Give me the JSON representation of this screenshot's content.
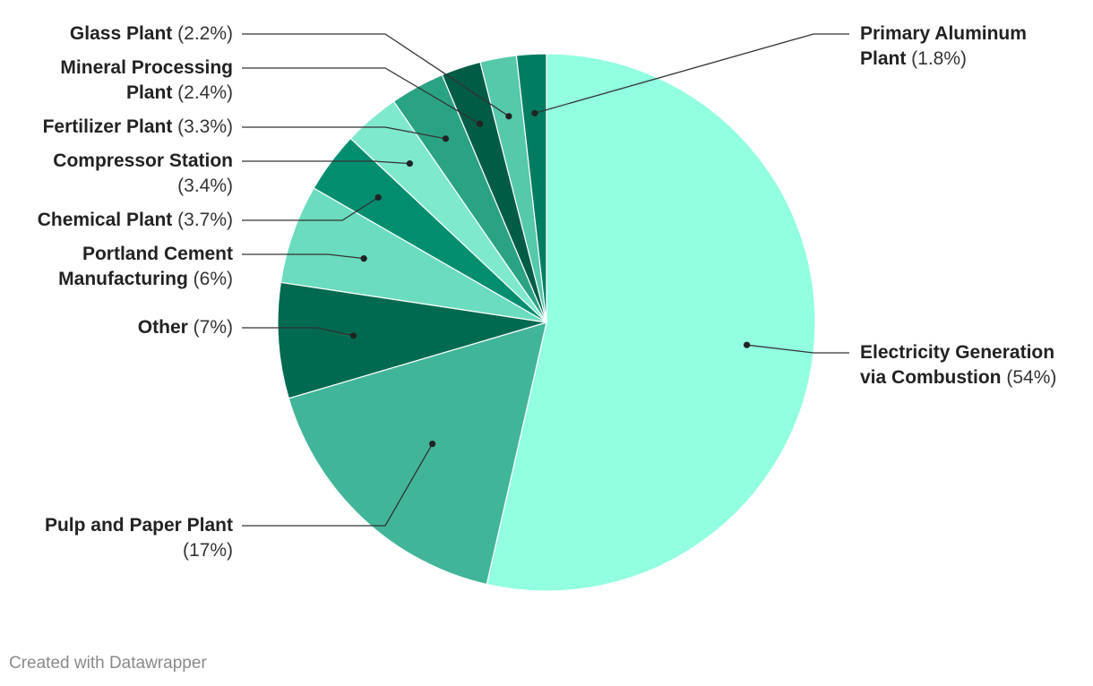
{
  "chart_data": {
    "type": "pie",
    "start_angle_deg": 0,
    "direction": "clockwise",
    "slices": [
      {
        "label_lines": [
          [
            "Electricity Generation",
            ""
          ],
          [
            "via Combustion",
            " (54%)"
          ]
        ],
        "name": "Electricity Generation via Combustion",
        "value": 54,
        "color": "#91ffe0",
        "side": "right"
      },
      {
        "label_lines": [
          [
            "Pulp and Paper Plant",
            ""
          ],
          [
            "",
            "(17%)"
          ]
        ],
        "name": "Pulp and Paper Plant",
        "value": 17,
        "color": "#41b599",
        "side": "left"
      },
      {
        "label_lines": [
          [
            "Other",
            " (7%)"
          ]
        ],
        "name": "Other",
        "value": 7,
        "color": "#006a50",
        "side": "left"
      },
      {
        "label_lines": [
          [
            "Portland Cement",
            ""
          ],
          [
            "Manufacturing",
            " (6%)"
          ]
        ],
        "name": "Portland Cement Manufacturing",
        "value": 6,
        "color": "#6bdcbf",
        "side": "left"
      },
      {
        "label_lines": [
          [
            "Chemical Plant",
            " (3.7%)"
          ]
        ],
        "name": "Chemical Plant",
        "value": 3.7,
        "color": "#008e6f",
        "side": "left"
      },
      {
        "label_lines": [
          [
            "Compressor Station",
            ""
          ],
          [
            "",
            "(3.4%)"
          ]
        ],
        "name": "Compressor Station",
        "value": 3.4,
        "color": "#7fe9cd",
        "side": "left"
      },
      {
        "label_lines": [
          [
            "Fertilizer Plant",
            " (3.3%)"
          ]
        ],
        "name": "Fertilizer Plant",
        "value": 3.3,
        "color": "#2aa384",
        "side": "left"
      },
      {
        "label_lines": [
          [
            "Mineral Processing",
            ""
          ],
          [
            "Plant",
            " (2.4%)"
          ]
        ],
        "name": "Mineral Processing Plant",
        "value": 2.4,
        "color": "#005c44",
        "side": "left"
      },
      {
        "label_lines": [
          [
            "Glass Plant",
            " (2.2%)"
          ]
        ],
        "name": "Glass Plant",
        "value": 2.2,
        "color": "#55c9aa",
        "side": "left"
      },
      {
        "label_lines": [
          [
            "Primary Aluminum",
            ""
          ],
          [
            "Plant",
            " (1.8%)"
          ]
        ],
        "name": "Primary Aluminum Plant",
        "value": 1.8,
        "color": "#007d61",
        "side": "right"
      }
    ]
  },
  "credit": "Created with Datawrapper"
}
